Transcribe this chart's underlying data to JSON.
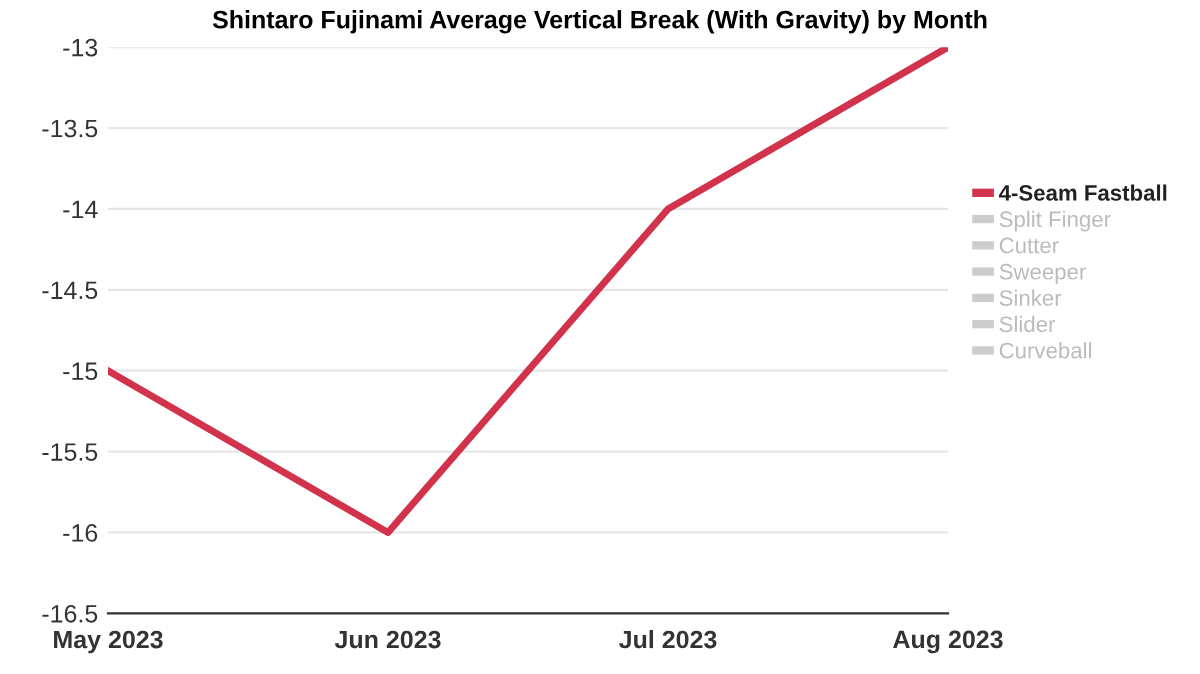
{
  "chart_data": {
    "type": "line",
    "title": "Shintaro Fujinami Average Vertical Break (With Gravity) by Month",
    "categories": [
      "May 2023",
      "Jun 2023",
      "Jul 2023",
      "Aug 2023"
    ],
    "series": [
      {
        "name": "4-Seam Fastball",
        "color": "#d2334c",
        "values": [
          -15,
          -16,
          -14,
          -13
        ]
      },
      {
        "name": "Split Finger",
        "color": "#cccccc",
        "values": [
          null,
          null,
          null,
          null
        ]
      },
      {
        "name": "Cutter",
        "color": "#cccccc",
        "values": [
          null,
          null,
          null,
          null
        ]
      },
      {
        "name": "Sweeper",
        "color": "#cccccc",
        "values": [
          null,
          null,
          null,
          null
        ]
      },
      {
        "name": "Sinker",
        "color": "#cccccc",
        "values": [
          null,
          null,
          null,
          null
        ]
      },
      {
        "name": "Slider",
        "color": "#cccccc",
        "values": [
          null,
          null,
          null,
          null
        ]
      },
      {
        "name": "Curveball",
        "color": "#cccccc",
        "values": [
          null,
          null,
          null,
          null
        ]
      }
    ],
    "ylim": [
      -16.5,
      -13
    ],
    "yticks": [
      -16.5,
      -16,
      -15.5,
      -15,
      -14.5,
      -14,
      -13.5,
      -13
    ],
    "grid": "y",
    "legend": "right",
    "marker": "none",
    "line_style": "solid"
  }
}
